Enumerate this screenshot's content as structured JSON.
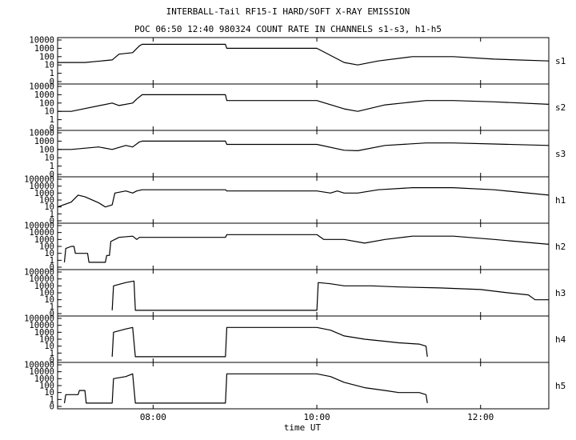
{
  "title": "INTERBALL-Tail RF15-I HARD/SOFT X-RAY EMISSION",
  "subtitle": "POC 06:50 12:40 980324  COUNT RATE IN CHANNELS s1-s3, h1-h5",
  "colors": {
    "line": "#000000",
    "background": "#ffffff"
  },
  "chart_data": {
    "type": "line",
    "layout_description": "8 vertically stacked panels sharing a time axis",
    "xlabel": "time UT",
    "x_range": [
      "06:50",
      "12:50"
    ],
    "x_ticks": [
      "08:00",
      "10:00",
      "12:00"
    ],
    "y_scale": "log",
    "panels": [
      {
        "name": "s1",
        "y_ticks": [
          "0",
          "1",
          "10",
          "100",
          "1000",
          "10000"
        ],
        "points": [
          [
            "06:50",
            20
          ],
          [
            "07:10",
            20
          ],
          [
            "07:30",
            40
          ],
          [
            "07:35",
            200
          ],
          [
            "07:45",
            300
          ],
          [
            "07:50",
            2000
          ],
          [
            "07:52",
            3000
          ],
          [
            "08:53",
            3000
          ],
          [
            "08:54",
            1000
          ],
          [
            "10:00",
            1000
          ],
          [
            "10:20",
            20
          ],
          [
            "10:30",
            10
          ],
          [
            "10:45",
            30
          ],
          [
            "11:10",
            100
          ],
          [
            "11:40",
            100
          ],
          [
            "12:10",
            50
          ],
          [
            "12:50",
            30
          ]
        ]
      },
      {
        "name": "s2",
        "y_ticks": [
          "0",
          "1",
          "10",
          "100",
          "1000",
          "10000"
        ],
        "points": [
          [
            "06:50",
            10
          ],
          [
            "07:00",
            10
          ],
          [
            "07:30",
            100
          ],
          [
            "07:35",
            50
          ],
          [
            "07:45",
            100
          ],
          [
            "07:48",
            300
          ],
          [
            "07:52",
            1000
          ],
          [
            "08:53",
            1000
          ],
          [
            "08:54",
            200
          ],
          [
            "10:00",
            200
          ],
          [
            "10:20",
            20
          ],
          [
            "10:30",
            10
          ],
          [
            "10:50",
            60
          ],
          [
            "11:20",
            200
          ],
          [
            "11:40",
            200
          ],
          [
            "12:10",
            140
          ],
          [
            "12:50",
            70
          ]
        ]
      },
      {
        "name": "s3",
        "y_ticks": [
          "0",
          "1",
          "10",
          "100",
          "1000",
          "10000"
        ],
        "points": [
          [
            "06:50",
            100
          ],
          [
            "07:00",
            100
          ],
          [
            "07:20",
            200
          ],
          [
            "07:30",
            100
          ],
          [
            "07:40",
            300
          ],
          [
            "07:45",
            200
          ],
          [
            "07:50",
            800
          ],
          [
            "07:52",
            1000
          ],
          [
            "08:53",
            1000
          ],
          [
            "08:54",
            400
          ],
          [
            "10:00",
            400
          ],
          [
            "10:20",
            80
          ],
          [
            "10:30",
            70
          ],
          [
            "10:50",
            300
          ],
          [
            "11:20",
            600
          ],
          [
            "11:40",
            600
          ],
          [
            "12:10",
            450
          ],
          [
            "12:50",
            300
          ]
        ]
      },
      {
        "name": "h1",
        "y_ticks": [
          "0",
          "1",
          "10",
          "100",
          "1000",
          "10000",
          "100000"
        ],
        "points": [
          [
            "06:50",
            10
          ],
          [
            "07:00",
            50
          ],
          [
            "07:05",
            500
          ],
          [
            "07:10",
            300
          ],
          [
            "07:20",
            40
          ],
          [
            "07:25",
            10
          ],
          [
            "07:30",
            20
          ],
          [
            "07:32",
            1000
          ],
          [
            "07:40",
            2000
          ],
          [
            "07:45",
            1000
          ],
          [
            "07:48",
            2000
          ],
          [
            "07:52",
            3000
          ],
          [
            "08:53",
            3000
          ],
          [
            "08:54",
            2000
          ],
          [
            "10:00",
            2000
          ],
          [
            "10:10",
            1000
          ],
          [
            "10:15",
            2000
          ],
          [
            "10:20",
            1000
          ],
          [
            "10:30",
            1000
          ],
          [
            "10:45",
            3000
          ],
          [
            "11:10",
            6000
          ],
          [
            "11:40",
            6000
          ],
          [
            "12:10",
            3000
          ],
          [
            "12:50",
            500
          ]
        ]
      },
      {
        "name": "h2",
        "y_ticks": [
          "0",
          "1",
          "10",
          "100",
          "1000",
          "10000",
          "100000"
        ],
        "points": [
          [
            "06:55",
            0.5
          ],
          [
            "06:56",
            50
          ],
          [
            "07:00",
            100
          ],
          [
            "07:02",
            100
          ],
          [
            "07:03",
            10
          ],
          [
            "07:12",
            10
          ],
          [
            "07:13",
            0.5
          ],
          [
            "07:25",
            0.5
          ],
          [
            "07:26",
            5
          ],
          [
            "07:28",
            5
          ],
          [
            "07:29",
            500
          ],
          [
            "07:35",
            2000
          ],
          [
            "07:45",
            3000
          ],
          [
            "07:48",
            1000
          ],
          [
            "07:50",
            2000
          ],
          [
            "08:53",
            2000
          ],
          [
            "08:54",
            5000
          ],
          [
            "10:00",
            5000
          ],
          [
            "10:05",
            1000
          ],
          [
            "10:20",
            1000
          ],
          [
            "10:35",
            300
          ],
          [
            "10:50",
            1000
          ],
          [
            "11:10",
            3000
          ],
          [
            "11:40",
            3000
          ],
          [
            "12:10",
            1000
          ],
          [
            "12:50",
            200
          ]
        ]
      },
      {
        "name": "h3",
        "y_ticks": [
          "0",
          "1",
          "10",
          "100",
          "1000",
          "10000",
          "100000"
        ],
        "points": [
          [
            "07:30",
            0.3
          ],
          [
            "07:31",
            1000
          ],
          [
            "07:40",
            3000
          ],
          [
            "07:46",
            5000
          ],
          [
            "07:47",
            0.3
          ],
          [
            "10:00",
            0.3
          ],
          [
            "10:01",
            3000
          ],
          [
            "10:10",
            2000
          ],
          [
            "10:20",
            1000
          ],
          [
            "10:40",
            1000
          ],
          [
            "11:00",
            700
          ],
          [
            "11:30",
            500
          ],
          [
            "12:00",
            300
          ],
          [
            "12:20",
            100
          ],
          [
            "12:35",
            50
          ],
          [
            "12:40",
            10
          ],
          [
            "12:50",
            10
          ]
        ]
      },
      {
        "name": "h4",
        "y_ticks": [
          "0",
          "1",
          "10",
          "100",
          "1000",
          "10000",
          "100000"
        ],
        "points": [
          [
            "07:30",
            0.3
          ],
          [
            "07:31",
            1000
          ],
          [
            "07:40",
            3000
          ],
          [
            "07:45",
            5000
          ],
          [
            "07:47",
            0.3
          ],
          [
            "08:53",
            0.3
          ],
          [
            "08:54",
            5000
          ],
          [
            "10:00",
            5000
          ],
          [
            "10:10",
            2000
          ],
          [
            "10:20",
            300
          ],
          [
            "10:35",
            100
          ],
          [
            "10:50",
            50
          ],
          [
            "11:00",
            30
          ],
          [
            "11:15",
            20
          ],
          [
            "11:20",
            10
          ],
          [
            "11:21",
            0.3
          ]
        ]
      },
      {
        "name": "h5",
        "y_ticks": [
          "0",
          "1",
          "10",
          "100",
          "1000",
          "10000",
          "100000"
        ],
        "points": [
          [
            "06:55",
            0.3
          ],
          [
            "06:56",
            5
          ],
          [
            "07:05",
            5
          ],
          [
            "07:06",
            20
          ],
          [
            "07:10",
            20
          ],
          [
            "07:11",
            0.3
          ],
          [
            "07:30",
            0.3
          ],
          [
            "07:31",
            1000
          ],
          [
            "07:40",
            2000
          ],
          [
            "07:45",
            5000
          ],
          [
            "07:47",
            0.3
          ],
          [
            "08:53",
            0.3
          ],
          [
            "08:54",
            5000
          ],
          [
            "10:00",
            5000
          ],
          [
            "10:10",
            2000
          ],
          [
            "10:20",
            300
          ],
          [
            "10:35",
            50
          ],
          [
            "10:50",
            20
          ],
          [
            "11:00",
            10
          ],
          [
            "11:15",
            10
          ],
          [
            "11:20",
            5
          ],
          [
            "11:21",
            0.3
          ]
        ]
      }
    ]
  }
}
